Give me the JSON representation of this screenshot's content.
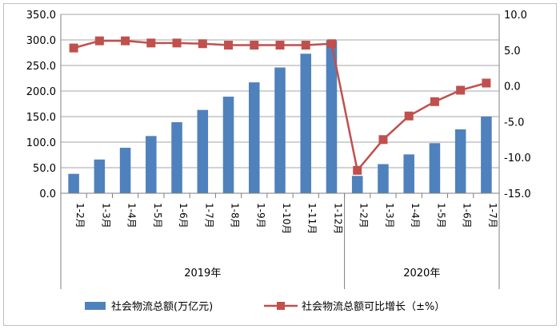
{
  "chart_data": {
    "type": "bar",
    "categories": [
      "1-2月",
      "1-3月",
      "1-4月",
      "1-5月",
      "1-6月",
      "1-7月",
      "1-8月",
      "1-9月",
      "1-10月",
      "1-11月",
      "1-12月",
      "1-2月",
      "1-3月",
      "1-4月",
      "1-5月",
      "1-6月",
      "1-7月"
    ],
    "groups": [
      {
        "label": "2019年",
        "count": 11
      },
      {
        "label": "2020年",
        "count": 6
      }
    ],
    "series": [
      {
        "name": "社会物流总额(万亿元)",
        "type": "bar",
        "axis": "left",
        "color": "#4f81bd",
        "values": [
          38,
          66,
          89,
          112,
          139,
          163,
          189,
          217,
          246,
          273,
          299,
          34,
          57,
          76,
          98,
          125,
          150
        ]
      },
      {
        "name": "社会物流总额可比增长（±%）",
        "type": "line",
        "axis": "right",
        "color": "#c0504d",
        "segments": [
          [
            0,
            10
          ],
          [
            11,
            16
          ]
        ],
        "values": [
          5.3,
          6.3,
          6.3,
          6.0,
          6.0,
          5.9,
          5.7,
          5.7,
          5.7,
          5.7,
          5.9,
          -11.8,
          -7.5,
          -4.2,
          -2.2,
          -0.6,
          0.4
        ]
      }
    ],
    "y_left": {
      "min": 0,
      "max": 350,
      "step": 50,
      "tick_labels": [
        "0.0",
        "50.0",
        "100.0",
        "150.0",
        "200.0",
        "250.0",
        "300.0",
        "350.0"
      ]
    },
    "y_right": {
      "min": -15,
      "max": 10,
      "step": 5,
      "tick_labels": [
        "-15.0",
        "-10.0",
        "-5.0",
        "0.0",
        "5.0",
        "10.0"
      ]
    },
    "gridlines": true,
    "legend_position": "bottom"
  }
}
